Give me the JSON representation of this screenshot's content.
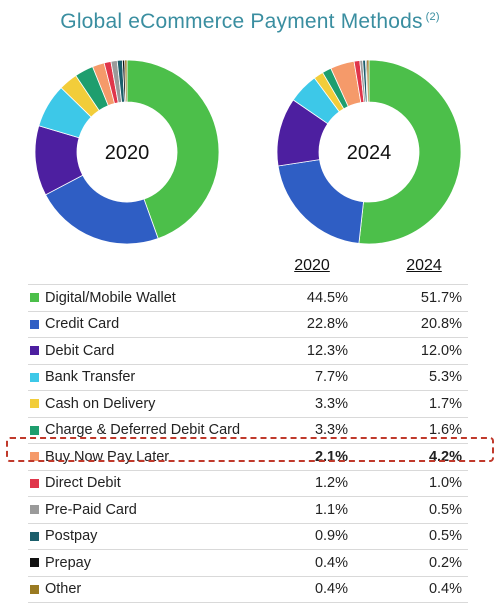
{
  "title": "Global eCommerce Payment Methods",
  "title_footnote": "(2)",
  "chart_data": {
    "type": "pie",
    "donut": true,
    "title": "Global eCommerce Payment Methods",
    "column_headers": [
      "2020",
      "2024"
    ],
    "categories": [
      {
        "name": "Digital/Mobile Wallet",
        "color": "#4cbf4a",
        "v2020": 44.5,
        "v2024": 51.7,
        "label2020": "44.5%",
        "label2024": "51.7%"
      },
      {
        "name": "Credit Card",
        "color": "#2f5ec4",
        "v2020": 22.8,
        "v2024": 20.8,
        "label2020": "22.8%",
        "label2024": "20.8%"
      },
      {
        "name": "Debit Card",
        "color": "#4d1fa0",
        "v2020": 12.3,
        "v2024": 12.0,
        "label2020": "12.3%",
        "label2024": "12.0%"
      },
      {
        "name": "Bank Transfer",
        "color": "#3dc8e8",
        "v2020": 7.7,
        "v2024": 5.3,
        "label2020": "7.7%",
        "label2024": "5.3%"
      },
      {
        "name": "Cash on Delivery",
        "color": "#f2cd3a",
        "v2020": 3.3,
        "v2024": 1.7,
        "label2020": "3.3%",
        "label2024": "1.7%"
      },
      {
        "name": "Charge & Deferred Debit Card",
        "color": "#1e9e6e",
        "v2020": 3.3,
        "v2024": 1.6,
        "label2020": "3.3%",
        "label2024": "1.6%"
      },
      {
        "name": "Buy Now Pay Later",
        "color": "#f59a6a",
        "v2020": 2.1,
        "v2024": 4.2,
        "label2020": "2.1%",
        "label2024": "4.2%",
        "highlighted": true
      },
      {
        "name": "Direct Debit",
        "color": "#e0354a",
        "v2020": 1.2,
        "v2024": 1.0,
        "label2020": "1.2%",
        "label2024": "1.0%"
      },
      {
        "name": "Pre-Paid Card",
        "color": "#9a9a9a",
        "v2020": 1.1,
        "v2024": 0.5,
        "label2020": "1.1%",
        "label2024": "0.5%"
      },
      {
        "name": "Postpay",
        "color": "#1b5e6b",
        "v2020": 0.9,
        "v2024": 0.5,
        "label2020": "0.9%",
        "label2024": "0.5%"
      },
      {
        "name": "Prepay",
        "color": "#111111",
        "v2020": 0.4,
        "v2024": 0.2,
        "label2020": "0.4%",
        "label2024": "0.2%"
      },
      {
        "name": "Other",
        "color": "#9a7a22",
        "v2020": 0.4,
        "v2024": 0.4,
        "label2020": "0.4%",
        "label2024": "0.4%"
      }
    ]
  }
}
